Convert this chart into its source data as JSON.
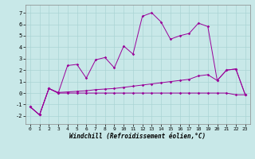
{
  "xlabel": "Windchill (Refroidissement éolien,°C)",
  "background_color": "#c8e8e8",
  "line_color": "#990099",
  "x_ticks": [
    0,
    1,
    2,
    3,
    4,
    5,
    6,
    7,
    8,
    9,
    10,
    11,
    12,
    13,
    14,
    15,
    16,
    17,
    18,
    19,
    20,
    21,
    22,
    23
  ],
  "y_ticks": [
    -2,
    -1,
    0,
    1,
    2,
    3,
    4,
    5,
    6,
    7
  ],
  "xlim": [
    -0.5,
    23.5
  ],
  "ylim": [
    -2.7,
    7.7
  ],
  "series1_y": [
    -1.2,
    -1.9,
    0.4,
    0.0,
    2.4,
    2.5,
    1.3,
    2.9,
    3.1,
    2.2,
    4.1,
    3.4,
    6.7,
    7.0,
    6.2,
    4.7,
    5.0,
    5.2,
    6.1,
    5.8,
    1.1,
    2.0,
    2.1,
    -0.15
  ],
  "series2_y": [
    -1.2,
    -1.9,
    0.4,
    0.0,
    0.0,
    0.0,
    0.0,
    0.0,
    0.0,
    0.0,
    0.0,
    0.0,
    0.0,
    0.0,
    0.0,
    0.0,
    0.0,
    0.0,
    0.0,
    0.0,
    0.0,
    0.0,
    -0.15,
    -0.15
  ],
  "series3_y": [
    -1.2,
    -1.9,
    0.4,
    0.05,
    0.1,
    0.15,
    0.2,
    0.3,
    0.35,
    0.4,
    0.5,
    0.6,
    0.7,
    0.8,
    0.9,
    1.0,
    1.1,
    1.2,
    1.5,
    1.6,
    1.1,
    2.0,
    2.1,
    -0.15
  ],
  "grid_color": "#aad4d4",
  "marker": "D",
  "markersize": 1.8,
  "linewidth": 0.7
}
